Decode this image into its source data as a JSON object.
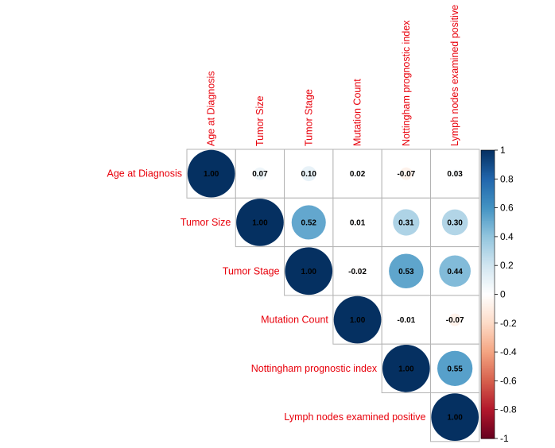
{
  "chart_data": {
    "type": "heatmap",
    "style": "correlation-circles-upper-triangle",
    "variables": [
      "Age at Diagnosis",
      "Tumor Size",
      "Tumor Stage",
      "Mutation Count",
      "Nottingham prognostic index",
      "Lymph nodes examined positive"
    ],
    "matrix": [
      [
        1.0,
        0.07,
        0.1,
        0.02,
        -0.07,
        0.03
      ],
      [
        0.07,
        1.0,
        0.52,
        0.01,
        0.31,
        0.3
      ],
      [
        0.1,
        0.52,
        1.0,
        -0.02,
        0.53,
        0.44
      ],
      [
        0.02,
        0.01,
        -0.02,
        1.0,
        -0.01,
        -0.07
      ],
      [
        -0.07,
        0.31,
        0.53,
        -0.01,
        1.0,
        0.55
      ],
      [
        0.03,
        0.3,
        0.44,
        -0.07,
        0.55,
        1.0
      ]
    ],
    "value_labels": [
      [
        "1.00",
        "0.07",
        "0.10",
        "0.02",
        "-0.07",
        "0.03"
      ],
      [
        "",
        "1.00",
        "0.52",
        "0.01",
        "0.31",
        "0.30"
      ],
      [
        "",
        "",
        "1.00",
        "-0.02",
        "0.53",
        "0.44"
      ],
      [
        "",
        "",
        "",
        "1.00",
        "-0.01",
        "-0.07"
      ],
      [
        "",
        "",
        "",
        "",
        "1.00",
        "0.55"
      ],
      [
        "",
        "",
        "",
        "",
        "",
        "1.00"
      ]
    ],
    "colorbar": {
      "range": [
        -1,
        1
      ],
      "ticks": [
        "1",
        "0.8",
        "0.6",
        "0.4",
        "0.2",
        "0",
        "-0.2",
        "-0.4",
        "-0.6",
        "-0.8",
        "-1"
      ],
      "tick_values": [
        1,
        0.8,
        0.6,
        0.4,
        0.2,
        0,
        -0.2,
        -0.4,
        -0.6,
        -0.8,
        -1
      ]
    },
    "colors": {
      "label": "#e8000b",
      "grid": "#b3b3b3",
      "scale": [
        "#67001f",
        "#b2182b",
        "#d6604d",
        "#f4a582",
        "#fddbc7",
        "#ffffff",
        "#d1e5f0",
        "#92c5de",
        "#4393c3",
        "#2166ac",
        "#053061"
      ]
    },
    "legend": "right"
  }
}
